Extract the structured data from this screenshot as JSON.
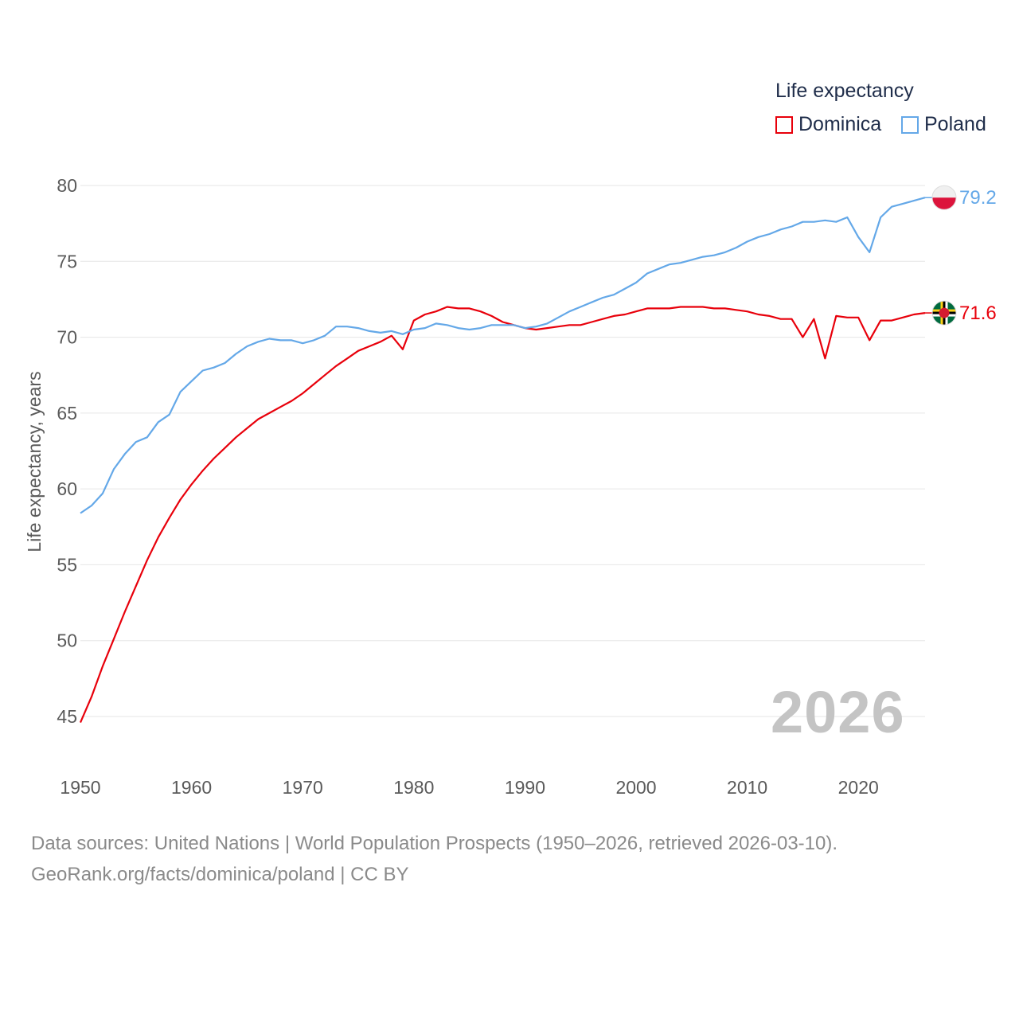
{
  "legend": {
    "title": "Life expectancy",
    "items": [
      {
        "label": "Dominica",
        "color": "#e8000b"
      },
      {
        "label": "Poland",
        "color": "#64a8e8"
      }
    ]
  },
  "watermark_year": "2026",
  "footer": {
    "line1": "Data sources: United Nations | World Population Prospects (1950–2026, retrieved 2026-03-10).",
    "line2": "GeoRank.org/facts/dominica/poland | CC BY"
  },
  "chart_data": {
    "type": "line",
    "title": "Life expectancy",
    "xlabel": "",
    "ylabel": "Life expectancy, years",
    "xlim": [
      1950,
      2026
    ],
    "ylim": [
      45,
      80
    ],
    "x_ticks": [
      "1950",
      "1960",
      "1970",
      "1980",
      "1990",
      "2000",
      "2010",
      "2020"
    ],
    "y_ticks": [
      "45",
      "50",
      "55",
      "60",
      "65",
      "70",
      "75",
      "80"
    ],
    "grid": true,
    "legend_position": "top-right",
    "x": [
      1950,
      1951,
      1952,
      1953,
      1954,
      1955,
      1956,
      1957,
      1958,
      1959,
      1960,
      1961,
      1962,
      1963,
      1964,
      1965,
      1966,
      1967,
      1968,
      1969,
      1970,
      1971,
      1972,
      1973,
      1974,
      1975,
      1976,
      1977,
      1978,
      1979,
      1980,
      1981,
      1982,
      1983,
      1984,
      1985,
      1986,
      1987,
      1988,
      1989,
      1990,
      1991,
      1992,
      1993,
      1994,
      1995,
      1996,
      1997,
      1998,
      1999,
      2000,
      2001,
      2002,
      2003,
      2004,
      2005,
      2006,
      2007,
      2008,
      2009,
      2010,
      2011,
      2012,
      2013,
      2014,
      2015,
      2016,
      2017,
      2018,
      2019,
      2020,
      2021,
      2022,
      2023,
      2024,
      2025,
      2026
    ],
    "series": [
      {
        "name": "Dominica",
        "color": "#e8000b",
        "end_label": "71.6",
        "flag": "dominica-flag",
        "values": [
          44.6,
          46.3,
          48.3,
          50.1,
          51.9,
          53.6,
          55.3,
          56.8,
          58.1,
          59.3,
          60.3,
          61.2,
          62.0,
          62.7,
          63.4,
          64.0,
          64.6,
          65.0,
          65.4,
          65.8,
          66.3,
          66.9,
          67.5,
          68.1,
          68.6,
          69.1,
          69.4,
          69.7,
          70.1,
          69.2,
          71.1,
          71.5,
          71.7,
          72.0,
          71.9,
          71.9,
          71.7,
          71.4,
          71.0,
          70.8,
          70.6,
          70.5,
          70.6,
          70.7,
          70.8,
          70.8,
          71.0,
          71.2,
          71.4,
          71.5,
          71.7,
          71.9,
          71.9,
          71.9,
          72.0,
          72.0,
          72.0,
          71.9,
          71.9,
          71.8,
          71.7,
          71.5,
          71.4,
          71.2,
          71.2,
          70.0,
          71.2,
          68.6,
          71.4,
          71.3,
          71.3,
          69.8,
          71.1,
          71.1,
          71.3,
          71.5,
          71.6
        ]
      },
      {
        "name": "Poland",
        "color": "#64a8e8",
        "end_label": "79.2",
        "flag": "poland-flag",
        "values": [
          58.4,
          58.9,
          59.7,
          61.3,
          62.3,
          63.1,
          63.4,
          64.4,
          64.9,
          66.4,
          67.1,
          67.8,
          68.0,
          68.3,
          68.9,
          69.4,
          69.7,
          69.9,
          69.8,
          69.8,
          69.6,
          69.8,
          70.1,
          70.7,
          70.7,
          70.6,
          70.4,
          70.3,
          70.4,
          70.2,
          70.5,
          70.6,
          70.9,
          70.8,
          70.6,
          70.5,
          70.6,
          70.8,
          70.8,
          70.8,
          70.6,
          70.7,
          70.9,
          71.3,
          71.7,
          72.0,
          72.3,
          72.6,
          72.8,
          73.2,
          73.6,
          74.2,
          74.5,
          74.8,
          74.9,
          75.1,
          75.3,
          75.4,
          75.6,
          75.9,
          76.3,
          76.6,
          76.8,
          77.1,
          77.3,
          77.6,
          77.6,
          77.7,
          77.6,
          77.9,
          76.6,
          75.6,
          77.9,
          78.6,
          78.8,
          79.0,
          79.2
        ]
      }
    ]
  }
}
